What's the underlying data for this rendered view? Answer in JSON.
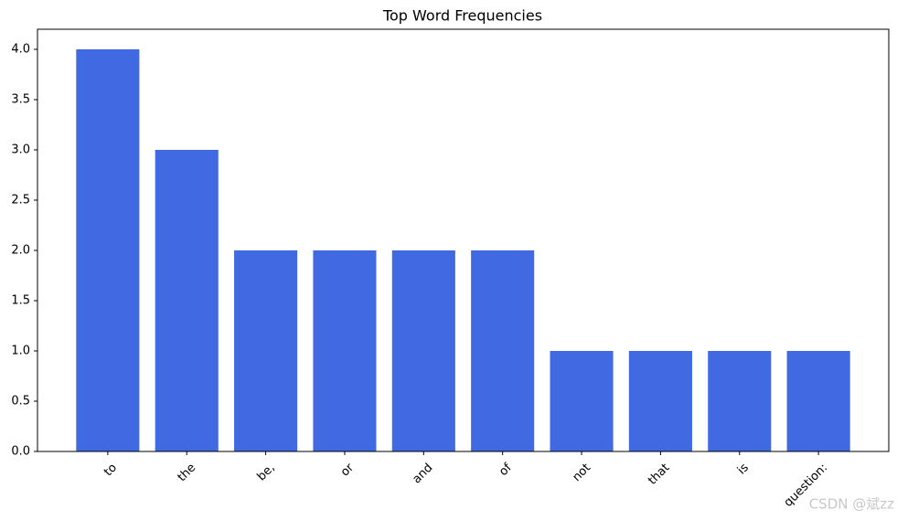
{
  "chart_data": {
    "type": "bar",
    "title": "Top Word Frequencies",
    "categories": [
      "to",
      "the",
      "be,",
      "or",
      "and",
      "of",
      "not",
      "that",
      "is",
      "question:"
    ],
    "values": [
      4,
      3,
      2,
      2,
      2,
      2,
      1,
      1,
      1,
      1
    ],
    "color": "#4169e1",
    "ylim": [
      0,
      4.2
    ],
    "yticks": [
      {
        "value": 0,
        "label": "0.0"
      },
      0.5,
      {
        "value": 1,
        "label": "1.0"
      },
      1.5,
      {
        "value": 2,
        "label": "2.0"
      },
      2.5,
      {
        "value": 3,
        "label": "3.0"
      },
      3.5,
      {
        "value": 4,
        "label": "4.0"
      }
    ],
    "watermark": "CSDN @斌zz"
  }
}
